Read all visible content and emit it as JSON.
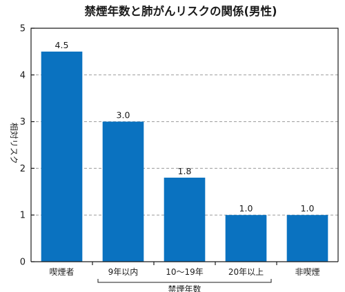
{
  "chart_data": {
    "type": "bar",
    "title": "禁煙年数と肺がんリスクの関係(男性)",
    "ylabel": "相対リスク",
    "ylim": [
      0,
      5
    ],
    "yticks": [
      "0",
      "1",
      "2",
      "3",
      "4",
      "5"
    ],
    "grid": true,
    "categories": [
      "喫煙者",
      "9年以内",
      "10〜19年",
      "20年以上",
      "非喫煙"
    ],
    "values": [
      4.5,
      3.0,
      1.8,
      1.0,
      1.0
    ],
    "value_labels": [
      "4.5",
      "3.0",
      "1.8",
      "1.0",
      "1.0"
    ],
    "group_label": "禁煙年数",
    "group_members": [
      "9年以内",
      "10〜19年",
      "20年以上"
    ],
    "bar_color": "#0a72c0"
  }
}
